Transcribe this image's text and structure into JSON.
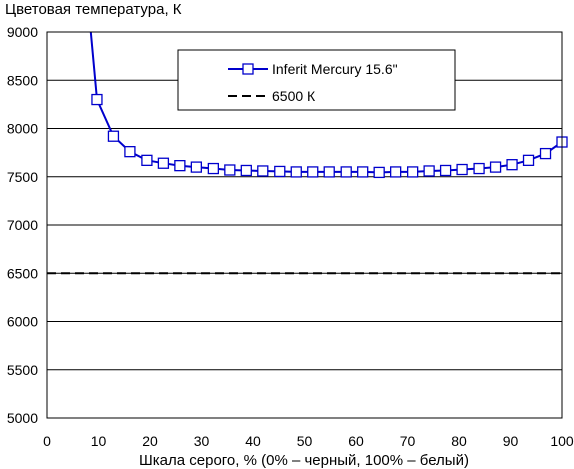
{
  "chart_data": {
    "type": "line",
    "ylabel": "Цветовая температура, К",
    "xlabel": "Шкала серого, % (0% – черный, 100% – белый)",
    "xlim": [
      0,
      100
    ],
    "ylim": [
      5000,
      9000
    ],
    "x_ticks": [
      0,
      10,
      20,
      30,
      40,
      50,
      60,
      70,
      80,
      90,
      100
    ],
    "y_ticks": [
      5000,
      5500,
      6000,
      6500,
      7000,
      7500,
      8000,
      8500,
      9000
    ],
    "grid": "horizontal",
    "legend_position": "top-center",
    "series": [
      {
        "name": "Inferit Mercury 15.6\"",
        "color": "#0000cc",
        "marker": "square",
        "x": [
          8.5,
          9.7,
          12.9,
          16.1,
          19.4,
          22.6,
          25.8,
          29.0,
          32.3,
          35.5,
          38.7,
          41.9,
          45.2,
          48.4,
          51.6,
          54.8,
          58.1,
          61.3,
          64.5,
          67.7,
          71.0,
          74.2,
          77.4,
          80.6,
          83.9,
          87.1,
          90.3,
          93.5,
          96.8,
          100
        ],
        "values": [
          9000,
          8300,
          7920,
          7760,
          7670,
          7640,
          7615,
          7600,
          7585,
          7570,
          7565,
          7560,
          7555,
          7550,
          7550,
          7550,
          7550,
          7550,
          7545,
          7550,
          7550,
          7560,
          7565,
          7575,
          7585,
          7600,
          7625,
          7670,
          7740,
          7860
        ],
        "markers_from_index": 1
      },
      {
        "name": "6500 К",
        "color": "#000000",
        "style": "dashed",
        "x": [
          0,
          100
        ],
        "values": [
          6500,
          6500
        ]
      }
    ]
  }
}
